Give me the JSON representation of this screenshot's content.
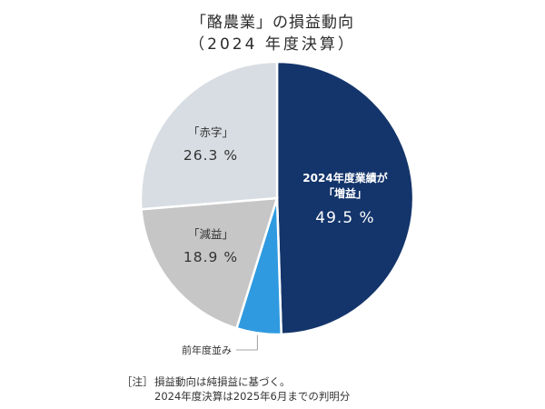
{
  "title_line1": "「酪農業」の損益動向",
  "title_line2": "（2024 年度決算）",
  "note": {
    "prefix": "［注］",
    "line1": "損益動向は純損益に基づく。",
    "line2": "2024年度決算は2025年6月までの判明分"
  },
  "chart_data": {
    "type": "pie",
    "title": "「酪農業」の損益動向 （2024 年度決算）",
    "unit": "%",
    "start": "12 o'clock, clockwise",
    "slices": [
      {
        "label_lines": [
          "2024年度業績が",
          "「増益」"
        ],
        "value": 49.5,
        "value_text": "49.5 %",
        "color": "#14356b",
        "text_color": "#ffffff",
        "label_bold": true,
        "label_position": "inside"
      },
      {
        "label_lines": [
          "前年度並み"
        ],
        "value": 5.3,
        "value_text": "",
        "color": "#2f9ae0",
        "text_color": "#333333",
        "label_bold": false,
        "label_position": "outside-bottom-left"
      },
      {
        "label_lines": [
          "「減益」"
        ],
        "value": 18.9,
        "value_text": "18.9 %",
        "color": "#c6c6c6",
        "text_color": "#333333",
        "label_bold": false,
        "label_position": "inside"
      },
      {
        "label_lines": [
          "「赤字」"
        ],
        "value": 26.3,
        "value_text": "26.3 %",
        "color": "#d7dde2",
        "text_color": "#333333",
        "label_bold": false,
        "label_position": "inside"
      }
    ]
  }
}
